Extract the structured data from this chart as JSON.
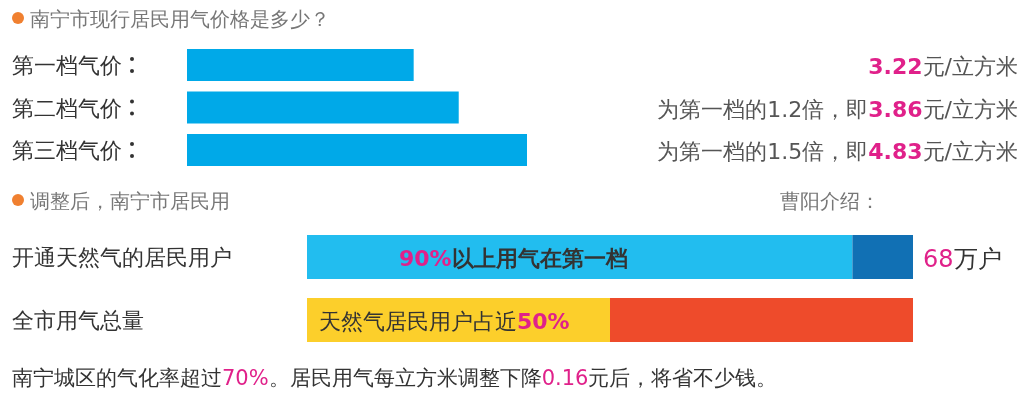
{
  "chart_data": [
    {
      "type": "bar",
      "orientation": "horizontal",
      "title": "南宁市现行居民用气价格是多少？",
      "categories": [
        "第一档气价",
        "第二档气价",
        "第三档气价"
      ],
      "values": [
        3.22,
        3.86,
        4.83
      ],
      "color": "#00a9e8",
      "value_labels": [
        "3.22元/立方米",
        "为第一档的1.2倍，即3.86元/立方米",
        "为第一档的1.5倍，即4.83元/立方米"
      ]
    },
    {
      "type": "bar",
      "orientation": "horizontal",
      "stacked": true,
      "categories": [
        "开通天然气的居民用户",
        "全市用气总量"
      ],
      "series": [
        {
          "colors": [
            "#22bdef",
            "#fccf2b"
          ],
          "values": [
            90,
            50
          ],
          "value_labels": [
            "90%以上用气在第一档",
            "天然气居民用户占近50%"
          ]
        },
        {
          "colors": [
            "#1170b4",
            "#ee4b2b"
          ],
          "values": [
            10,
            50
          ]
        }
      ],
      "annotations": [
        "调整后，南宁市居民用",
        "曹阳介绍：",
        {
          "text": "68万户",
          "x": 100,
          "y": "开通天然气的居民用户"
        },
        "南宁城区的气化率超过70%。居民用气每立方米调整下降0.16元后，将省不少钱。"
      ]
    }
  ]
}
